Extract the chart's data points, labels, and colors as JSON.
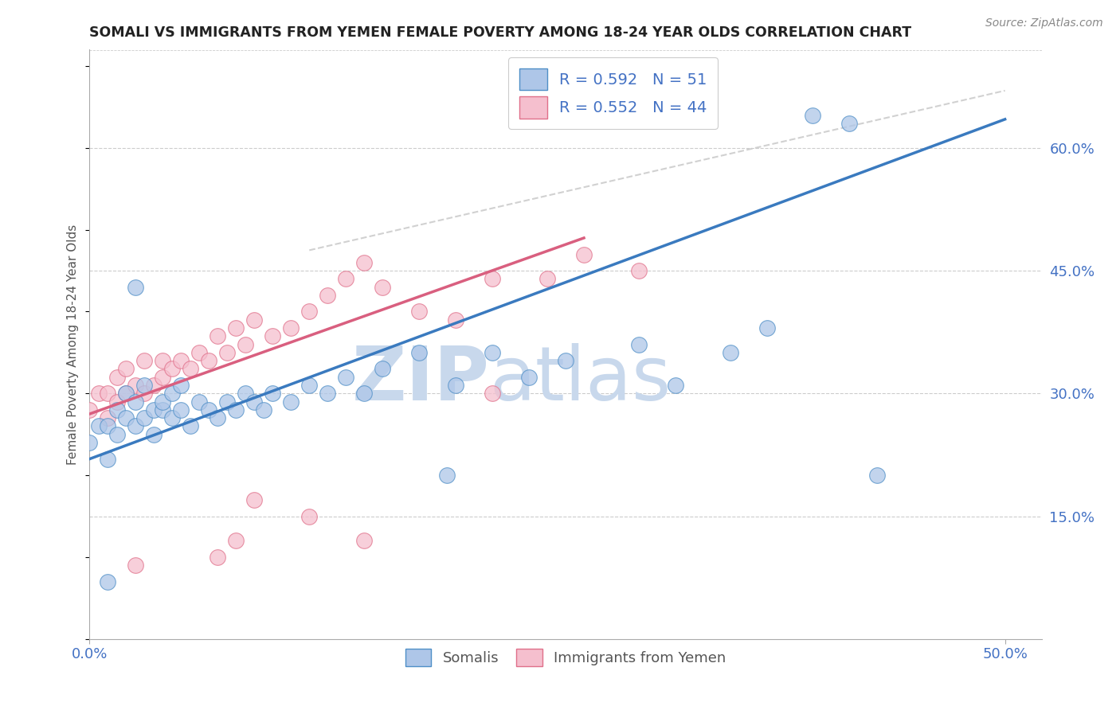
{
  "title": "SOMALI VS IMMIGRANTS FROM YEMEN FEMALE POVERTY AMONG 18-24 YEAR OLDS CORRELATION CHART",
  "source": "Source: ZipAtlas.com",
  "ylabel": "Female Poverty Among 18-24 Year Olds",
  "xlim": [
    0.0,
    0.52
  ],
  "ylim": [
    0.0,
    0.72
  ],
  "ytick_values": [
    0.15,
    0.3,
    0.45,
    0.6
  ],
  "xtick_values": [
    0.0,
    0.5
  ],
  "xtick_labels": [
    "0.0%",
    "50.0%"
  ],
  "legend_r1": "0.592",
  "legend_n1": "51",
  "legend_r2": "0.552",
  "legend_n2": "44",
  "somali_color": "#aec6e8",
  "somali_edge_color": "#4f8fc7",
  "somali_line_color": "#3a7abf",
  "yemen_color": "#f5bfce",
  "yemen_edge_color": "#e0708a",
  "yemen_line_color": "#d95f7f",
  "watermark_zip_color": "#c8d8ec",
  "watermark_atlas_color": "#c8d8ec",
  "background_color": "#ffffff",
  "grid_color": "#cccccc",
  "label_color": "#4472c4",
  "somali_x": [
    0.0,
    0.005,
    0.01,
    0.01,
    0.015,
    0.015,
    0.02,
    0.02,
    0.025,
    0.025,
    0.03,
    0.03,
    0.035,
    0.035,
    0.04,
    0.04,
    0.045,
    0.045,
    0.05,
    0.05,
    0.055,
    0.06,
    0.065,
    0.07,
    0.075,
    0.08,
    0.085,
    0.09,
    0.095,
    0.1,
    0.11,
    0.12,
    0.13,
    0.14,
    0.15,
    0.16,
    0.18,
    0.2,
    0.22,
    0.24,
    0.26,
    0.3,
    0.32,
    0.35,
    0.37,
    0.395,
    0.415,
    0.43,
    0.195,
    0.025,
    0.01
  ],
  "somali_y": [
    0.24,
    0.26,
    0.22,
    0.26,
    0.25,
    0.28,
    0.27,
    0.3,
    0.26,
    0.29,
    0.27,
    0.31,
    0.25,
    0.28,
    0.28,
    0.29,
    0.27,
    0.3,
    0.28,
    0.31,
    0.26,
    0.29,
    0.28,
    0.27,
    0.29,
    0.28,
    0.3,
    0.29,
    0.28,
    0.3,
    0.29,
    0.31,
    0.3,
    0.32,
    0.3,
    0.33,
    0.35,
    0.31,
    0.35,
    0.32,
    0.34,
    0.36,
    0.31,
    0.35,
    0.38,
    0.64,
    0.63,
    0.2,
    0.2,
    0.43,
    0.07
  ],
  "yemen_x": [
    0.0,
    0.005,
    0.01,
    0.01,
    0.015,
    0.015,
    0.02,
    0.02,
    0.025,
    0.03,
    0.03,
    0.035,
    0.04,
    0.04,
    0.045,
    0.05,
    0.055,
    0.06,
    0.065,
    0.07,
    0.075,
    0.08,
    0.085,
    0.09,
    0.1,
    0.11,
    0.12,
    0.13,
    0.14,
    0.15,
    0.16,
    0.18,
    0.2,
    0.22,
    0.22,
    0.25,
    0.27,
    0.3,
    0.15,
    0.07,
    0.08,
    0.025,
    0.12,
    0.09
  ],
  "yemen_y": [
    0.28,
    0.3,
    0.27,
    0.3,
    0.29,
    0.32,
    0.3,
    0.33,
    0.31,
    0.3,
    0.34,
    0.31,
    0.32,
    0.34,
    0.33,
    0.34,
    0.33,
    0.35,
    0.34,
    0.37,
    0.35,
    0.38,
    0.36,
    0.39,
    0.37,
    0.38,
    0.4,
    0.42,
    0.44,
    0.46,
    0.43,
    0.4,
    0.39,
    0.3,
    0.44,
    0.44,
    0.47,
    0.45,
    0.12,
    0.1,
    0.12,
    0.09,
    0.15,
    0.17
  ],
  "somali_line_x0": 0.0,
  "somali_line_y0": 0.22,
  "somali_line_x1": 0.5,
  "somali_line_y1": 0.635,
  "yemen_line_x0": 0.0,
  "yemen_line_y0": 0.275,
  "yemen_line_x1": 0.27,
  "yemen_line_y1": 0.49,
  "dash_line_x0": 0.12,
  "dash_line_y0": 0.475,
  "dash_line_x1": 0.5,
  "dash_line_y1": 0.67
}
